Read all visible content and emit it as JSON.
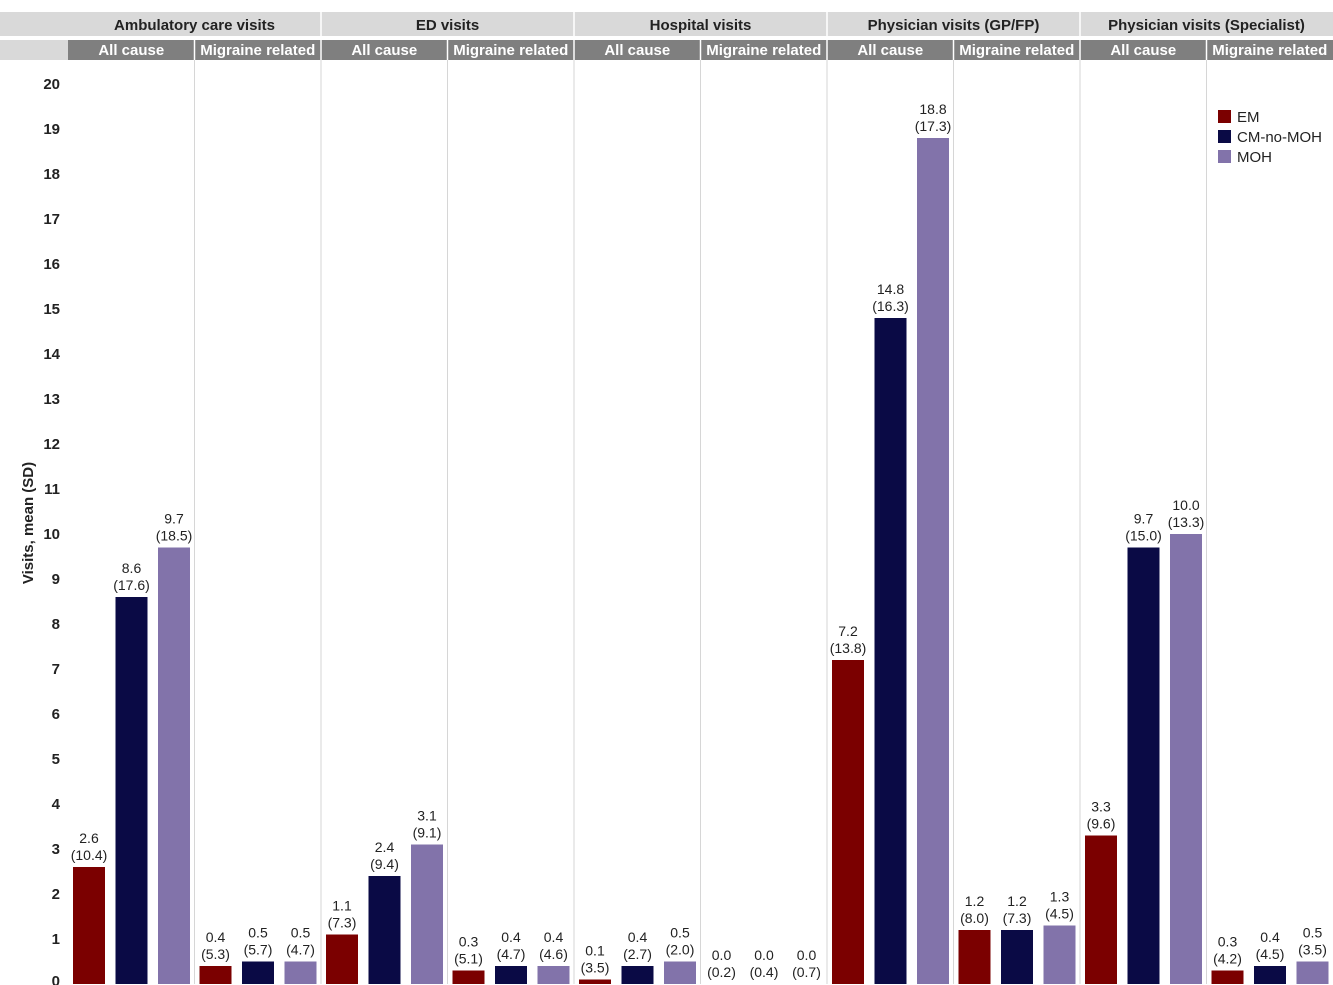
{
  "chart_data": {
    "type": "bar",
    "ylabel": "Visits, mean (SD)",
    "ylim": [
      0,
      20
    ],
    "yticks": [
      "0",
      "1",
      "2",
      "3",
      "4",
      "5",
      "6",
      "7",
      "8",
      "9",
      "10",
      "11",
      "12",
      "13",
      "14",
      "15",
      "16",
      "17",
      "18",
      "19",
      "20"
    ],
    "grid": false,
    "legend_position": "top-right",
    "series": [
      {
        "name": "EM",
        "color": "#7b0000"
      },
      {
        "name": "CM-no-MOH",
        "color": "#0a0a45"
      },
      {
        "name": "MOH",
        "color": "#8273aa"
      }
    ],
    "groups": [
      {
        "title": "Ambulatory care visits",
        "panels": [
          {
            "label": "All cause",
            "bars": [
              {
                "value": 2.6,
                "text": "2.6",
                "sd": "(10.4)"
              },
              {
                "value": 8.6,
                "text": "8.6",
                "sd": "(17.6)"
              },
              {
                "value": 9.7,
                "text": "9.7",
                "sd": "(18.5)"
              }
            ]
          },
          {
            "label": "Migraine related",
            "bars": [
              {
                "value": 0.4,
                "text": "0.4",
                "sd": "(5.3)"
              },
              {
                "value": 0.5,
                "text": "0.5",
                "sd": "(5.7)"
              },
              {
                "value": 0.5,
                "text": "0.5",
                "sd": "(4.7)"
              }
            ]
          }
        ]
      },
      {
        "title": "ED visits",
        "panels": [
          {
            "label": "All cause",
            "bars": [
              {
                "value": 1.1,
                "text": "1.1",
                "sd": "(7.3)"
              },
              {
                "value": 2.4,
                "text": "2.4",
                "sd": "(9.4)"
              },
              {
                "value": 3.1,
                "text": "3.1",
                "sd": "(9.1)"
              }
            ]
          },
          {
            "label": "Migraine related",
            "bars": [
              {
                "value": 0.3,
                "text": "0.3",
                "sd": "(5.1)"
              },
              {
                "value": 0.4,
                "text": "0.4",
                "sd": "(4.7)"
              },
              {
                "value": 0.4,
                "text": "0.4",
                "sd": "(4.6)"
              }
            ]
          }
        ]
      },
      {
        "title": "Hospital visits",
        "panels": [
          {
            "label": "All cause",
            "bars": [
              {
                "value": 0.1,
                "text": "0.1",
                "sd": "(3.5)"
              },
              {
                "value": 0.4,
                "text": "0.4",
                "sd": "(2.7)"
              },
              {
                "value": 0.5,
                "text": "0.5",
                "sd": "(2.0)"
              }
            ]
          },
          {
            "label": "Migraine related",
            "bars": [
              {
                "value": 0.0,
                "text": "0.0",
                "sd": "(0.2)"
              },
              {
                "value": 0.0,
                "text": "0.0",
                "sd": "(0.4)"
              },
              {
                "value": 0.0,
                "text": "0.0",
                "sd": "(0.7)"
              }
            ]
          }
        ]
      },
      {
        "title": "Physician visits (GP/FP)",
        "panels": [
          {
            "label": "All cause",
            "bars": [
              {
                "value": 7.2,
                "text": "7.2",
                "sd": "(13.8)"
              },
              {
                "value": 14.8,
                "text": "14.8",
                "sd": "(16.3)"
              },
              {
                "value": 18.8,
                "text": "18.8",
                "sd": "(17.3)"
              }
            ]
          },
          {
            "label": "Migraine related",
            "bars": [
              {
                "value": 1.2,
                "text": "1.2",
                "sd": "(8.0)"
              },
              {
                "value": 1.2,
                "text": "1.2",
                "sd": "(7.3)"
              },
              {
                "value": 1.3,
                "text": "1.3",
                "sd": "(4.5)"
              }
            ]
          }
        ]
      },
      {
        "title": "Physician visits (Specialist)",
        "panels": [
          {
            "label": "All cause",
            "bars": [
              {
                "value": 3.3,
                "text": "3.3",
                "sd": "(9.6)"
              },
              {
                "value": 9.7,
                "text": "9.7",
                "sd": "(15.0)"
              },
              {
                "value": 10.0,
                "text": "10.0",
                "sd": "(13.3)"
              }
            ]
          },
          {
            "label": "Migraine related",
            "bars": [
              {
                "value": 0.3,
                "text": "0.3",
                "sd": "(4.2)"
              },
              {
                "value": 0.4,
                "text": "0.4",
                "sd": "(4.5)"
              },
              {
                "value": 0.5,
                "text": "0.5",
                "sd": "(3.5)"
              }
            ]
          }
        ]
      }
    ]
  }
}
